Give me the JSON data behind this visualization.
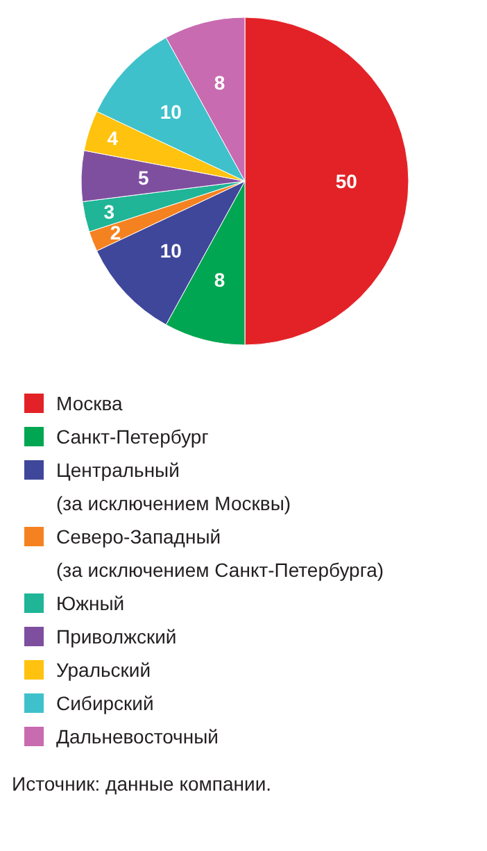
{
  "chart_data": {
    "type": "pie",
    "categories": [
      "Москва",
      "Санкт-Петербург",
      "Центральный\n(за исключением Москвы)",
      "Северо-Западный\n(за исключением Санкт-Петербурга)",
      "Южный",
      "Приволжский",
      "Уральский",
      "Сибирский",
      "Дальневосточный"
    ],
    "values": [
      50,
      8,
      10,
      2,
      3,
      5,
      4,
      10,
      8
    ],
    "colors": [
      "#e32227",
      "#00a651",
      "#3f479b",
      "#f58220",
      "#1fb596",
      "#7f4f9f",
      "#ffc20e",
      "#3fc1cb",
      "#c86bb0"
    ],
    "data_labels": true,
    "legend": "bottom",
    "annotations": [
      "Источник: данные компании."
    ]
  }
}
